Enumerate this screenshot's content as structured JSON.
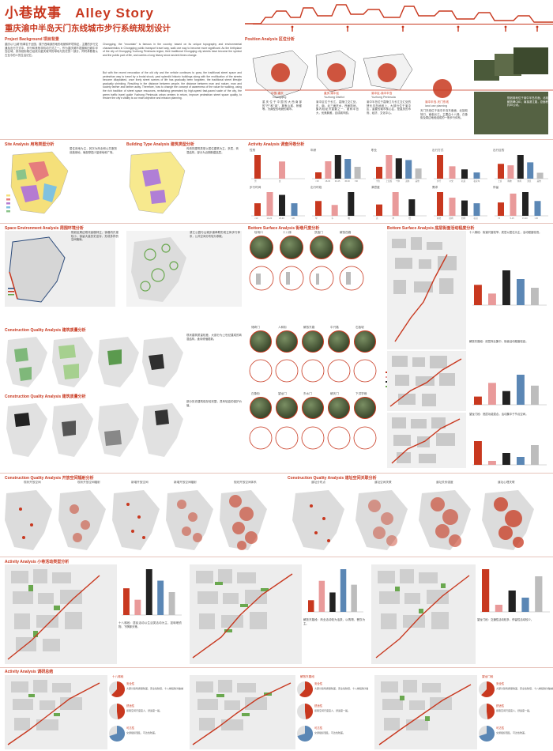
{
  "header": {
    "title_cn": "小巷故事",
    "title_en": "Alley Story",
    "subtitle": "重庆渝中半岛天门东线城市步行系统规划设计"
  },
  "colors": {
    "accent_red": "#c8381f",
    "pink": "#e99a9a",
    "black": "#222222",
    "blue": "#5b87b5",
    "green": "#6aa84f",
    "gray": "#bdbdbd"
  },
  "sections": {
    "project_background": "Project Background 项目背景",
    "position_analysis": "Position Analysis 区位分析",
    "site_analysis": "Site Analysis 用地类型分析",
    "building_type_analysis": "Building Type Analysis 建筑类型分析",
    "activity_survey": "Activity Analysis 调查问卷分析",
    "space_environment": "Space Environment Analysis 周围环境分析",
    "bottom_surface_1": "Bottom Surface Analysis 街巷尺度分析",
    "bottom_surface_2": "Bottom Surface Analysis 底层街面活动程度分析",
    "construction_quality_1": "Construction Quality Analysis 建筑质量分析",
    "construction_quality_2": "Construction Quality Analysis 建筑质量分析",
    "construction_open_space": "Construction Quality Analysis 开放空间辐射分析",
    "construction_connection": "Construction Quality Analysis 道址空间关联分析",
    "activity_flow": "Activity Analysis 小巷活动类型分析",
    "activity_summary": "Activity Analysis 调研总结"
  },
  "background_text": {
    "cn": "重庆以\"山城\"而闻名于全国，属于西南部的地形地貌和环境特征，主要的步行交通及出行方式中，步行和其他非机动方式之一。作为重庆城市发展和旧城中半岛区域，其传统街巷已经成为重庆城市的母地与历史的一部分，同时承载着从古至今的人的生活记忆。",
    "en": "Chongqing, the \"mountain\" is famous in the country. based on its unique topography and environmental characteristics in Chongqing public transport travel way, walk one way to become more significant. As the birthplace of the city of Chongqing Yuzhong Peninsula region, their traditional Chongqing city streets have become the symbol and the public part of life, and carries a long history since ancient times change.",
    "en2": "But with the recent renovation of the old city and the vehicle continues to grow, the traditional street space and pedestrian way to travel by a brutal shock, past splendid historic buildings along with the rectification of the streets become dilapidated, once lively street scenes of life has gradually been forgotten, the traditional street lifestyle gradually shrinking. Resulting in the distance between people, the distance between man and nature, man and society farther and farther away. Therefore, how to change the concept of awareness of the value for walking, using the rich tradition of street space resources, revitalizing generated by high-speed fast-paced scale of the city, the green traffic travel guide Yuzhong Peninsula urban centers in return, improve pedestrian street space quality, to restore the city's vitality is our main objective and mission planning."
  },
  "position": {
    "nodes": [
      {
        "cn": "中国-重庆",
        "en": "Chongqing",
        "desc": "重庆位于中国的大西南部的\"巴\"和\"渝\"，拥有山城、桥都等，为典型的地貌的城市。"
      },
      {
        "cn": "重庆-渝中区",
        "en": "Yuzhong District",
        "desc": "渝中区位于长江、嘉陵江交汇处，东、南、北三面环水，西面陆地，集内陆经济重要之一，被称半岛大，优美典雅，自成城市韵。"
      },
      {
        "cn": "渝中区-渝中半岛",
        "en": "Yuzhong Peninsula",
        "desc": "渝中半岛位于嘉陵江与长江交汇处的狭长半岛地段上，大部分位于渝中区，重要的城市核心区，是重庆的市府、经济、文化中心。"
      },
      {
        "cn": "渝中半岛-天门东线",
        "en": "land use planning",
        "desc": "天门东线位于渝中半岛东南面，北接较场口，南临长江。主要由十八梯、白象街及周边地段组成的一条步行体系。"
      }
    ],
    "caption": "规划用地位于渝中半岛东面，北临解放碑CBD，南接滨江路，总面积约30公顷。"
  },
  "site_text": "居住用地为主，其次为商业和公共服务设施用地，局部穿插少量绿地和广场。",
  "building_text": "传统的建筑类型以居住建筑为主，多层，砖混结构，部分为近期新建高层。",
  "space_text": "规划区周边现代高楼林立，街巷内尺度较小，保留大量历史遗存，形成多样的空间格局。",
  "space_text2": "滨江公园与山城步道串联形成立体步行体系，公共空间分布较为零散。",
  "survey": {
    "charts": [
      {
        "title": "性别",
        "cats": [
          "男",
          "女"
        ],
        "values": [
          58,
          42
        ]
      },
      {
        "title": "年龄",
        "cats": [
          "<18",
          "18-30",
          "30-45",
          "45-60",
          ">60"
        ],
        "values": [
          8,
          22,
          30,
          25,
          15
        ]
      },
      {
        "title": "职业",
        "cats": [
          "学生",
          "上班族",
          "个体",
          "退休",
          "其他"
        ],
        "values": [
          14,
          28,
          24,
          22,
          12
        ]
      },
      {
        "title": "出行方式",
        "cats": [
          "步行",
          "公交",
          "轨道",
          "私家车"
        ],
        "values": [
          46,
          24,
          18,
          12
        ]
      },
      {
        "title": "出行目的",
        "cats": [
          "上班",
          "购物",
          "休闲",
          "游览",
          "其他"
        ],
        "values": [
          20,
          18,
          32,
          22,
          8
        ]
      },
      {
        "title": "步行时间",
        "cats": [
          "<10",
          "10-20",
          "20-30",
          ">30"
        ],
        "values": [
          18,
          34,
          30,
          18
        ]
      },
      {
        "title": "出行时段",
        "cats": [
          "早",
          "午",
          "晚"
        ],
        "values": [
          30,
          22,
          48
        ]
      },
      {
        "title": "满意度",
        "cats": [
          "高",
          "中",
          "低"
        ],
        "values": [
          22,
          46,
          32
        ]
      },
      {
        "title": "需求",
        "cats": [
          "绿化",
          "座椅",
          "照明",
          "标识"
        ],
        "values": [
          34,
          26,
          22,
          18
        ]
      },
      {
        "title": "停留",
        "cats": [
          "<5",
          "5-15",
          "15-30",
          ">30"
        ],
        "values": [
          18,
          30,
          32,
          20
        ]
      }
    ]
  },
  "street_photos": {
    "row1": [
      "较场口",
      "十八梯",
      "凯旋门",
      "解放西路"
    ],
    "row2": [
      "储奇门",
      "人和街",
      "解放东路",
      "中兴路",
      "石板坡"
    ],
    "row3": [
      "白象街",
      "望龙门",
      "东水门",
      "朝天门",
      "下洪学巷"
    ]
  },
  "legend": [
    "临街",
    "退界",
    "底商",
    "绿化"
  ],
  "activity_bars": [
    {
      "cat": "A",
      "values": [
        35,
        20,
        60,
        45,
        30
      ]
    },
    {
      "cat": "B",
      "values": [
        15,
        40,
        25,
        55,
        35
      ]
    },
    {
      "cat": "C",
      "values": [
        60,
        10,
        30,
        20,
        50
      ]
    }
  ],
  "summary": {
    "titles": [
      "十八梯段",
      "解放东路段",
      "望龙门段"
    ],
    "labels": [
      "安全性",
      "舒适性",
      "可达性",
      "多样性"
    ],
    "texts": [
      "大部分建筑质量较差，安全性较低，十八梯段较为陡峭。",
      "街巷空间尺度宜人，舒适度一般。",
      "交通组织混乱，可达性较差。",
      "步行空间多样性需要提升。"
    ]
  },
  "open_space_labels": [
    "现状开放空间",
    "现状开放空间辐射",
    "新增开放空间",
    "新增开放空间辐射",
    "规划开放空间体系"
  ],
  "connection_labels": [
    "道址分布点",
    "道址空间关联",
    "道址关系强度",
    "道址心理关联"
  ],
  "activity_text": "十八梯段：居民活动以生活类活动为主，如晾晒衣物、下棋聊天等。",
  "activity_text2": "解放东路段：商业活动较为活跃，以购物、餐饮为主。",
  "activity_text3": "望龙门段：交通性活动较多，停留性活动较少。",
  "quality_text": "现状建筑质量较差，大部分为上世纪建成的砖混结构，亟待修缮更新。",
  "quality_text2": "部分历史建筑保存较完整，具有较高的保护价值。",
  "bottom_text": "十八梯段：街道尺度较窄，底层以居住为主，活动程度较低。",
  "bottom_text2": "解放东路段：底层商业集中，街面活动程度较高。",
  "bottom_text3": "望龙门段：底层功能混合，活动集中于节点空间。"
}
